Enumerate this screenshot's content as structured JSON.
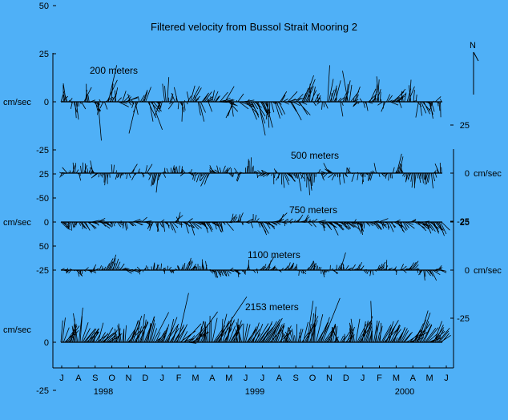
{
  "chart_data": {
    "type": "stick-plot",
    "title": "Filtered velocity from Bussol Strait Mooring 2",
    "north_label": "N",
    "months": [
      "J",
      "A",
      "S",
      "O",
      "N",
      "D",
      "J",
      "F",
      "M",
      "A",
      "M",
      "J",
      "J",
      "A",
      "S",
      "O",
      "N",
      "D",
      "J",
      "F",
      "M",
      "A",
      "M",
      "J"
    ],
    "years": [
      "1998",
      "1999",
      "2000"
    ],
    "left_unit": "cm/sec",
    "right_unit": "cm/sec",
    "panels": [
      {
        "name": "200 meters",
        "axis_side": "left",
        "ticks": [
          "50",
          "25",
          "0",
          "-25",
          "-50"
        ],
        "tick_values": [
          50,
          25,
          0,
          -25,
          -50
        ],
        "show_unit": true
      },
      {
        "name": "500 meters",
        "axis_side": "right",
        "ticks": [
          "25",
          "0",
          "-25"
        ],
        "tick_values": [
          25,
          0,
          -25
        ],
        "show_unit": true
      },
      {
        "name": "750 meters",
        "axis_side": "left",
        "ticks": [
          "-25",
          "0",
          "25"
        ],
        "tick_values": [
          -25,
          0,
          25
        ],
        "show_unit": true
      },
      {
        "name": "1100 meters",
        "axis_side": "right",
        "ticks": [
          "25",
          "0",
          "-25"
        ],
        "tick_values": [
          25,
          0,
          -25
        ],
        "show_unit": true
      },
      {
        "name": "2153 meters",
        "axis_side": "left",
        "ticks": [
          "50",
          "0",
          "-25"
        ],
        "tick_values": [
          50,
          0,
          -25
        ],
        "show_unit": true
      }
    ],
    "stick_color": "#000000",
    "background": "#4fb0f7"
  }
}
